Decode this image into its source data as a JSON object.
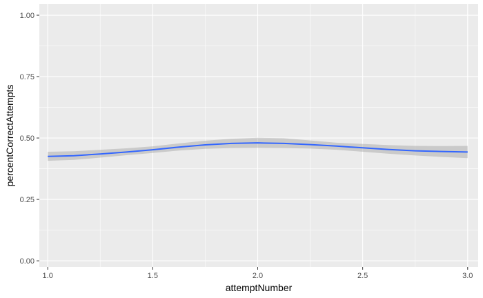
{
  "chart_data": {
    "type": "line",
    "title": "",
    "xlabel": "attemptNumber",
    "ylabel": "percentCorrectAttempts",
    "xlim": [
      0.96,
      3.05
    ],
    "ylim": [
      -0.025,
      1.045
    ],
    "x_ticks": [
      1.0,
      1.5,
      2.0,
      2.5,
      3.0
    ],
    "x_tick_labels": [
      "1.0",
      "1.5",
      "2.0",
      "2.5",
      "3.0"
    ],
    "y_ticks": [
      0.0,
      0.25,
      0.5,
      0.75,
      1.0
    ],
    "y_tick_labels": [
      "0.00",
      "0.25",
      "0.50",
      "0.75",
      "1.00"
    ],
    "grid": true,
    "legend": "none",
    "series": [
      {
        "x": [
          1.0,
          1.125,
          1.25,
          1.375,
          1.5,
          1.625,
          1.75,
          1.875,
          2.0,
          2.125,
          2.25,
          2.375,
          2.5,
          2.625,
          2.75,
          2.875,
          3.0
        ],
        "y": [
          0.425,
          0.428,
          0.435,
          0.443,
          0.452,
          0.463,
          0.472,
          0.478,
          0.48,
          0.478,
          0.473,
          0.467,
          0.46,
          0.453,
          0.448,
          0.445,
          0.443
        ],
        "lower": [
          0.407,
          0.411,
          0.42,
          0.43,
          0.439,
          0.449,
          0.456,
          0.459,
          0.46,
          0.459,
          0.457,
          0.452,
          0.444,
          0.436,
          0.429,
          0.423,
          0.418
        ],
        "upper": [
          0.444,
          0.446,
          0.452,
          0.458,
          0.466,
          0.478,
          0.489,
          0.497,
          0.501,
          0.499,
          0.49,
          0.481,
          0.476,
          0.471,
          0.468,
          0.467,
          0.468
        ]
      }
    ],
    "colors": {
      "panel_background": "#EBEBEB",
      "grid_major": "#FFFFFF",
      "line": "#3366FF",
      "ribbon": "#999999"
    }
  }
}
